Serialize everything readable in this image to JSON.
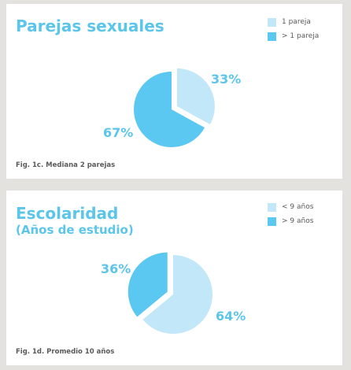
{
  "colors": {
    "light": "#c2e7f8",
    "dark": "#5bc8f2",
    "text": "#5bc5ea"
  },
  "charts": [
    {
      "title": "Parejas sexuales",
      "subtitle": "",
      "legend": [
        "1 pareja",
        "> 1 pareja"
      ],
      "caption": "Fig. 1c. Mediana 2 parejas",
      "labels": [
        "33%",
        "67%"
      ]
    },
    {
      "title": "Escolaridad",
      "subtitle": "(Años de estudio)",
      "legend": [
        "< 9 años",
        "> 9 años"
      ],
      "caption": "Fig. 1d. Promedio 10 años",
      "labels": [
        "64%",
        "36%"
      ]
    }
  ],
  "chart_data": [
    {
      "type": "pie",
      "title": "Parejas sexuales",
      "categories": [
        "1 pareja",
        "> 1 pareja"
      ],
      "values": [
        33,
        67
      ],
      "exploded": "1 pareja",
      "legend_position": "top-right"
    },
    {
      "type": "pie",
      "title": "Escolaridad (Años de estudio)",
      "categories": [
        "< 9 años",
        "> 9 años"
      ],
      "values": [
        64,
        36
      ],
      "exploded": "> 9 años",
      "legend_position": "top-right"
    }
  ]
}
